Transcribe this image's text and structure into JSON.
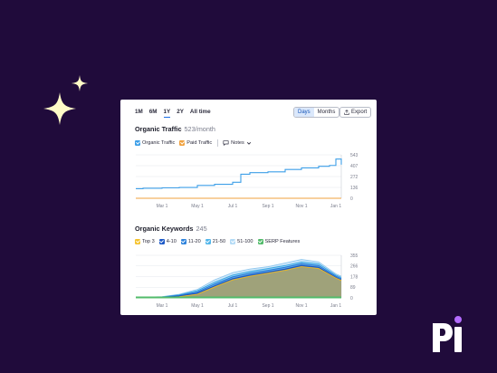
{
  "range_tabs": [
    "1M",
    "6M",
    "1Y",
    "2Y",
    "All time"
  ],
  "range_active": "1Y",
  "granularity": {
    "days": "Days",
    "months": "Months",
    "active": "Days"
  },
  "export_label": "Export",
  "traffic": {
    "title": "Organic Traffic",
    "value": "523/month",
    "legend": {
      "organic": "Organic Traffic",
      "paid": "Paid Traffic",
      "notes": "Notes"
    },
    "y_ticks": [
      "543",
      "407",
      "272",
      "136",
      "0"
    ],
    "x_ticks": [
      "Mar 1",
      "May 1",
      "Jul 1",
      "Sep 1",
      "Nov 1",
      "Jan 1"
    ]
  },
  "keywords": {
    "title": "Organic Keywords",
    "value": "245",
    "legend": [
      "Top 3",
      "4-10",
      "11-20",
      "21-50",
      "51-100",
      "SERP Features"
    ],
    "y_ticks": [
      "355",
      "266",
      "178",
      "89",
      "0"
    ],
    "x_ticks": [
      "Mar 1",
      "May 1",
      "Jul 1",
      "Sep 1",
      "Nov 1",
      "Jan 1"
    ]
  },
  "colors": {
    "background": "#200b3b",
    "accent": "#1a6fe6",
    "organic": "#3d9fe8",
    "paid": "#f0a13e",
    "top3": "#f5c330",
    "k4_10": "#1c59c7",
    "k11_20": "#2e83dc",
    "k21_50": "#52b6ea",
    "k51_100": "#b3dbf6",
    "serp": "#52bb6a"
  },
  "chart_data": [
    {
      "type": "line",
      "title": "Organic Traffic",
      "x": [
        "Jan 15",
        "Feb 1",
        "Mar 1",
        "Apr 1",
        "May 1",
        "Jun 1",
        "Jul 1",
        "Jul 15",
        "Aug 1",
        "Sep 1",
        "Oct 1",
        "Nov 1",
        "Dec 1",
        "Dec 20",
        "Jan 1",
        "Jan 10"
      ],
      "series": [
        {
          "name": "Organic Traffic",
          "values": [
            120,
            125,
            130,
            135,
            160,
            175,
            200,
            300,
            320,
            330,
            360,
            380,
            400,
            410,
            490,
            420
          ]
        },
        {
          "name": "Paid Traffic",
          "values": [
            0,
            0,
            0,
            0,
            0,
            0,
            0,
            0,
            0,
            0,
            0,
            0,
            0,
            0,
            0,
            0
          ]
        }
      ],
      "ylim": [
        0,
        543
      ]
    },
    {
      "type": "area",
      "title": "Organic Keywords",
      "x": [
        "Jan 15",
        "Feb 1",
        "Mar 1",
        "Apr 1",
        "May 1",
        "Jun 1",
        "Jul 1",
        "Aug 1",
        "Sep 1",
        "Oct 1",
        "Nov 1",
        "Dec 1",
        "Jan 1",
        "Jan 10"
      ],
      "series": [
        {
          "name": "51-100",
          "values": [
            0,
            5,
            10,
            30,
            70,
            150,
            210,
            240,
            260,
            290,
            320,
            300,
            200,
            180
          ]
        },
        {
          "name": "21-50",
          "values": [
            0,
            4,
            8,
            25,
            60,
            130,
            190,
            220,
            245,
            270,
            300,
            285,
            190,
            170
          ]
        },
        {
          "name": "11-20",
          "values": [
            0,
            3,
            6,
            20,
            50,
            115,
            175,
            205,
            230,
            255,
            285,
            270,
            180,
            160
          ]
        },
        {
          "name": "4-10",
          "values": [
            0,
            2,
            4,
            15,
            40,
            100,
            160,
            190,
            215,
            240,
            270,
            255,
            170,
            150
          ]
        },
        {
          "name": "Top 3",
          "values": [
            0,
            1,
            2,
            10,
            30,
            90,
            150,
            180,
            205,
            230,
            260,
            245,
            165,
            145
          ]
        }
      ],
      "ylim": [
        0,
        355
      ]
    }
  ]
}
